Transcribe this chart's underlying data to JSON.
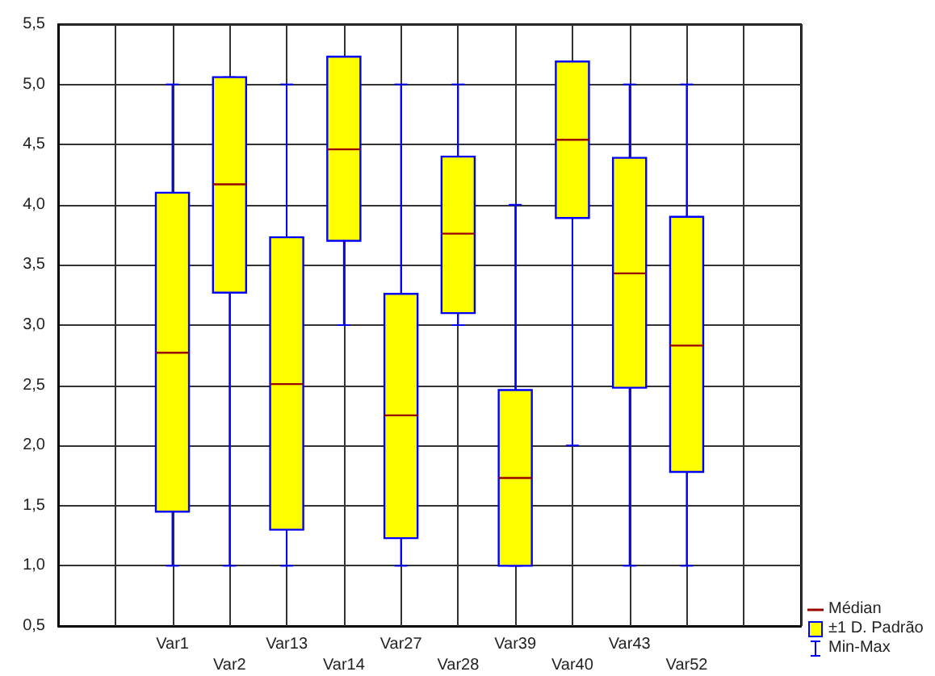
{
  "chart_data": {
    "type": "box",
    "categories": [
      null,
      null,
      "Var1",
      "Var2",
      "Var13",
      "Var14",
      "Var27",
      "Var28",
      "Var39",
      "Var40",
      "Var43",
      "Var52",
      null,
      null
    ],
    "series": [
      {
        "name": "±1 D. Padrão",
        "color": "#ffff00",
        "boxes": [
          null,
          null,
          {
            "low": 1.0,
            "q1": 1.45,
            "median": 2.77,
            "q3": 4.1,
            "high": 5.0
          },
          {
            "low": 1.0,
            "q1": 3.27,
            "median": 4.17,
            "q3": 5.06,
            "high": 5.06
          },
          {
            "low": 1.0,
            "q1": 1.3,
            "median": 2.51,
            "q3": 3.73,
            "high": 5.0
          },
          {
            "low": 3.0,
            "q1": 3.7,
            "median": 4.46,
            "q3": 5.23,
            "high": 5.23
          },
          {
            "low": 1.0,
            "q1": 1.23,
            "median": 2.25,
            "q3": 3.26,
            "high": 5.0
          },
          {
            "low": 3.0,
            "q1": 3.1,
            "median": 3.76,
            "q3": 4.4,
            "high": 5.0
          },
          {
            "low": 1.0,
            "q1": 1.0,
            "median": 1.73,
            "q3": 2.46,
            "high": 4.0
          },
          {
            "low": 2.0,
            "q1": 3.89,
            "median": 4.54,
            "q3": 5.19,
            "high": 5.19
          },
          {
            "low": 1.0,
            "q1": 2.48,
            "median": 3.43,
            "q3": 4.39,
            "high": 5.0
          },
          {
            "low": 1.0,
            "q1": 1.78,
            "median": 2.83,
            "q3": 3.9,
            "high": 5.0
          },
          null,
          null
        ]
      }
    ],
    "annotations": [
      "Médian",
      "Min-Max"
    ],
    "ylim": [
      0.5,
      5.5
    ],
    "yticks": [
      {
        "value": 0.5,
        "label": "0,5"
      },
      {
        "value": 1.0,
        "label": "1,0"
      },
      {
        "value": 1.5,
        "label": "1,5"
      },
      {
        "value": 2.0,
        "label": "2,0"
      },
      {
        "value": 2.5,
        "label": "2,5"
      },
      {
        "value": 3.0,
        "label": "3,0"
      },
      {
        "value": 3.5,
        "label": "3,5"
      },
      {
        "value": 4.0,
        "label": "4,0"
      },
      {
        "value": 4.5,
        "label": "4,5"
      },
      {
        "value": 5.0,
        "label": "5,0"
      },
      {
        "value": 5.5,
        "label": "5,5"
      }
    ],
    "grid": true,
    "legend": "bottom right"
  }
}
